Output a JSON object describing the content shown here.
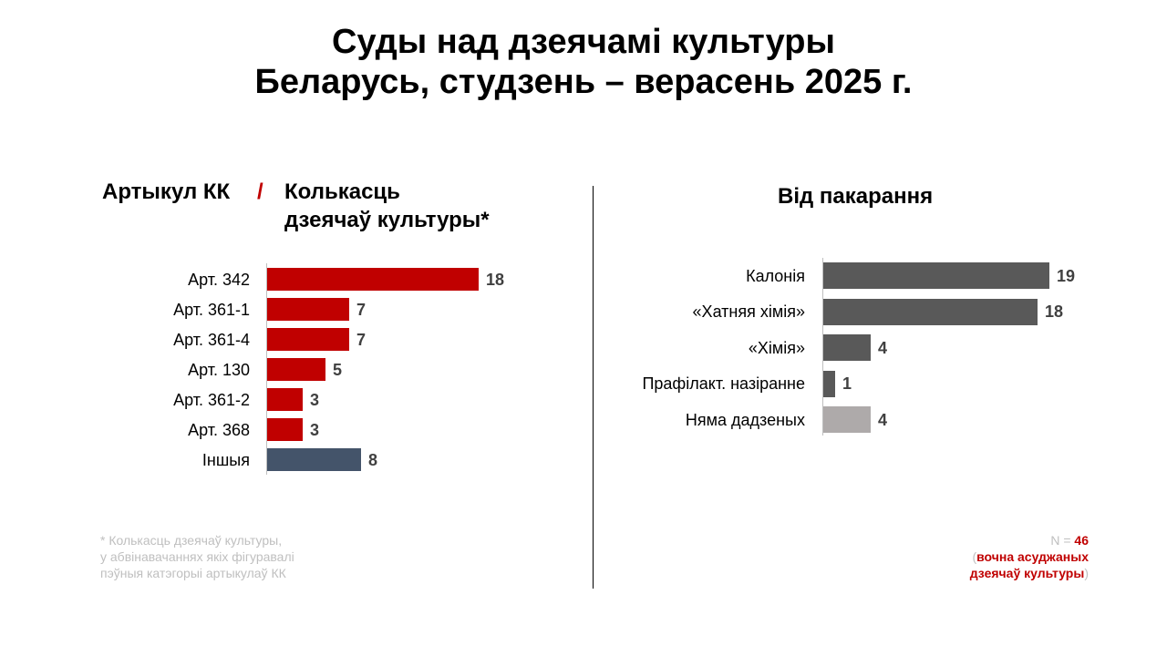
{
  "title_line1": "Суды над дзеячамі культуры",
  "title_line2": "Беларусь, студзень – верасень 2025 г.",
  "chart_data": [
    {
      "type": "bar",
      "orientation": "horizontal",
      "header_left": "Артыкул КК",
      "header_separator": "/",
      "header_right_line1": "Колькасць",
      "header_right_line2": "дзеячаў культуры*",
      "categories": [
        "Арт. 342",
        "Арт. 361-1",
        "Арт. 361-4",
        "Арт. 130",
        "Арт. 361-2",
        "Арт. 368",
        "Іншыя"
      ],
      "values": [
        18,
        7,
        7,
        5,
        3,
        3,
        8
      ],
      "colors": [
        "#c00000",
        "#c00000",
        "#c00000",
        "#c00000",
        "#c00000",
        "#c00000",
        "#44546a"
      ],
      "xlim": [
        0,
        18
      ]
    },
    {
      "type": "bar",
      "orientation": "horizontal",
      "title": "Від пакарання",
      "categories": [
        "Калонія",
        "«Хатняя хімія»",
        "«Хімія»",
        "Прафілакт.  назіранне",
        "Няма дадзеных"
      ],
      "values": [
        19,
        18,
        4,
        1,
        4
      ],
      "colors": [
        "#595959",
        "#595959",
        "#595959",
        "#595959",
        "#aeaaaa"
      ],
      "xlim": [
        0,
        19
      ]
    }
  ],
  "footnote": {
    "line1": "* Колькасць дзеячаў культуры,",
    "line2": "у абвінавачаннях якіх фігуравалі",
    "line3": "пэўныя катэгорыі артыкулаў КК"
  },
  "note": {
    "n_prefix": "N = ",
    "n_value": "46",
    "open_paren": "(",
    "line1": "вочна асуджаных",
    "line2": "дзеячаў культуры",
    "close_paren": ")"
  }
}
